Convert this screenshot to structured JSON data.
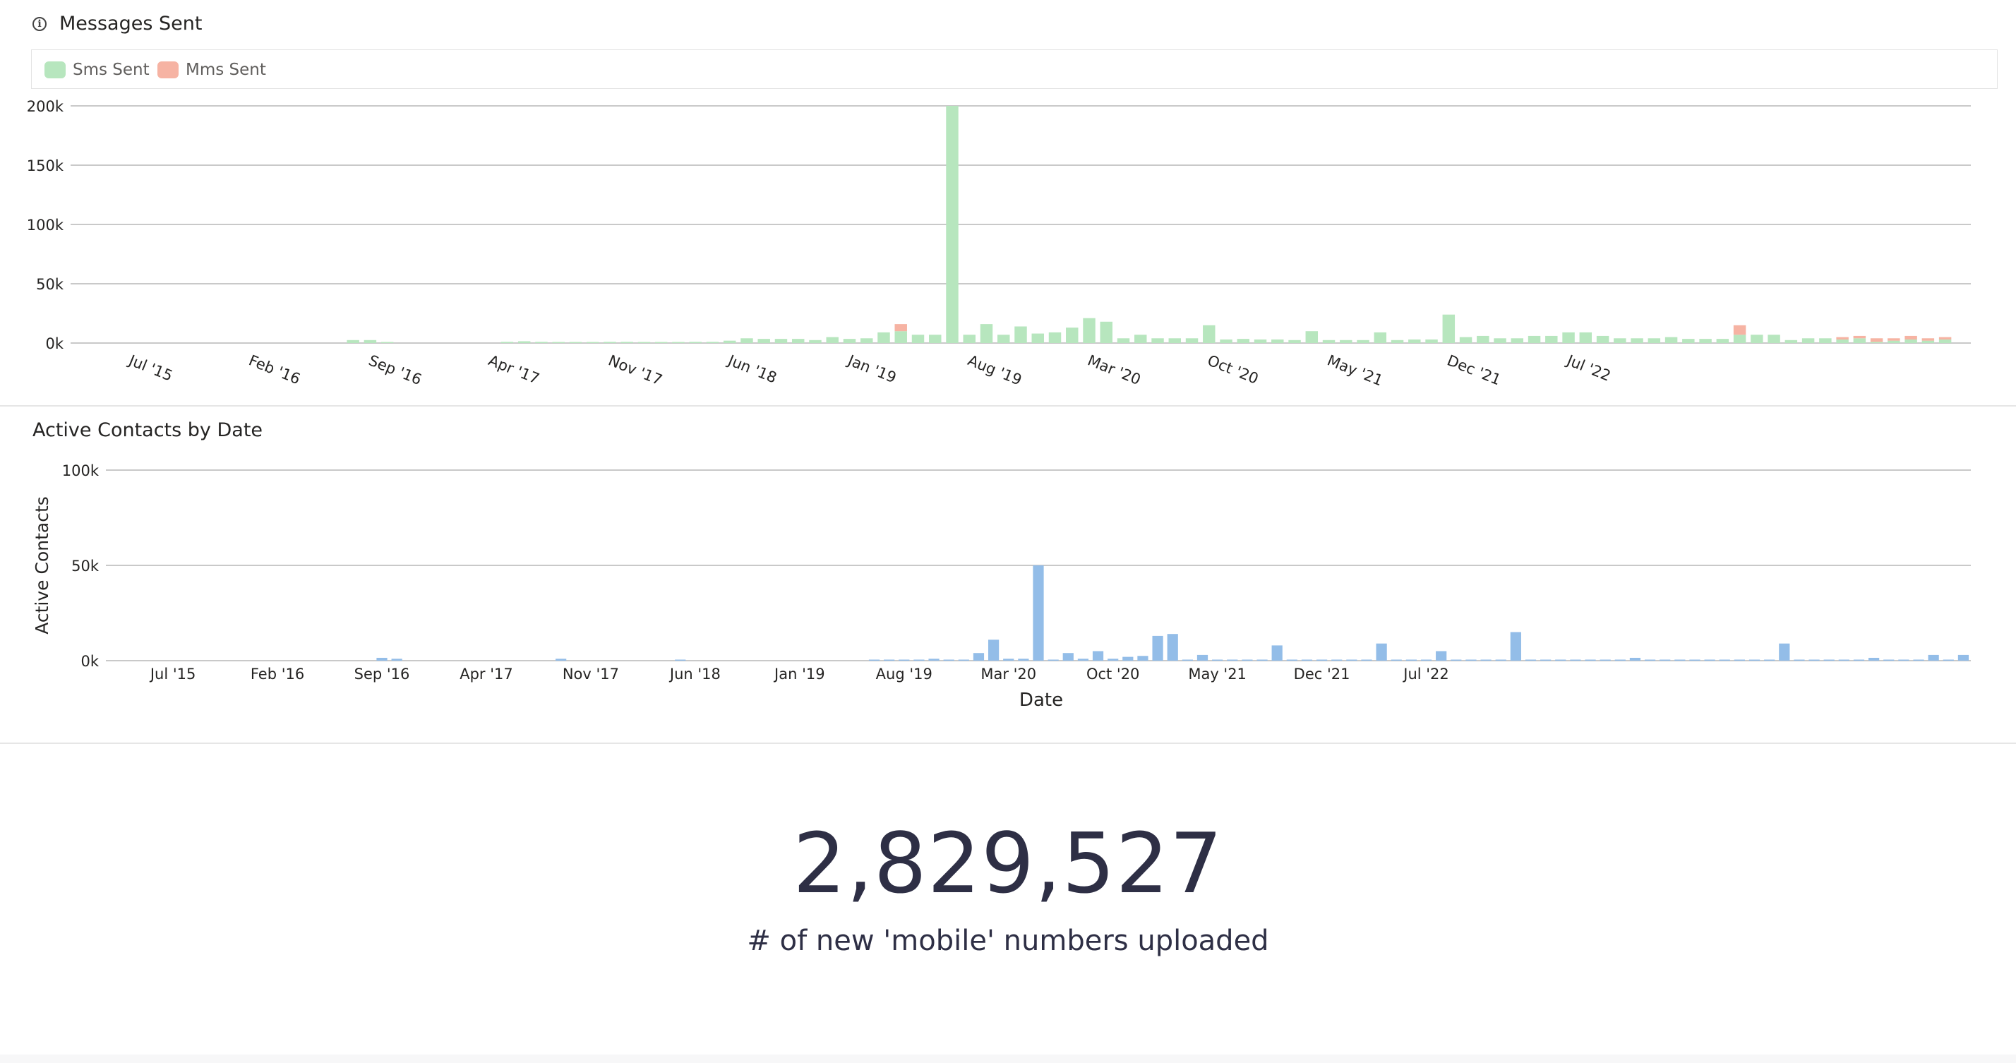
{
  "colors": {
    "sms": "#b7e6be",
    "mms": "#f6b3a3",
    "contacts": "#93bde8",
    "grid": "#b7b7b7",
    "axis_text": "#252423"
  },
  "messages_chart": {
    "title": "Messages Sent",
    "info_icon": "info-icon",
    "legend": [
      {
        "name": "Sms Sent",
        "color": "#b7e6be"
      },
      {
        "name": "Mms Sent",
        "color": "#f6b3a3"
      }
    ]
  },
  "contacts_chart": {
    "title": "Active Contacts by Date",
    "ylabel": "Active Contacts",
    "xlabel": "Date"
  },
  "kpi": {
    "value": "2,829,527",
    "label": "# of new 'mobile' numbers uploaded"
  },
  "chart_data": [
    {
      "type": "bar",
      "stacked": true,
      "title": "Messages Sent",
      "x_start": "2015-03",
      "x_ticks": [
        "Jul '15",
        "Feb '16",
        "Sep '16",
        "Apr '17",
        "Nov '17",
        "Jun '18",
        "Jan '19",
        "Aug '19",
        "Mar '20",
        "Oct '20",
        "May '21",
        "Dec '21",
        "Jul '22"
      ],
      "y_ticks": [
        "0k",
        "50k",
        "100k",
        "150k",
        "200k"
      ],
      "ylim": [
        0,
        200000
      ],
      "legend_position": "top-left",
      "grid": true,
      "series": [
        {
          "name": "Sms Sent",
          "values": [
            0,
            0,
            0,
            0,
            0,
            0,
            0,
            0,
            0,
            0,
            0,
            0,
            0,
            0,
            0,
            0,
            2500,
            2500,
            500,
            0,
            0,
            0,
            0,
            0,
            0,
            1000,
            1500,
            1000,
            500,
            500,
            500,
            1000,
            1000,
            500,
            500,
            500,
            1000,
            1000,
            2000,
            4000,
            3500,
            3500,
            3500,
            2500,
            5000,
            3500,
            4000,
            9000,
            10000,
            7000,
            7000,
            200000,
            7000,
            16000,
            7000,
            14000,
            8000,
            9000,
            13000,
            21000,
            18000,
            4000,
            7000,
            4000,
            4000,
            4000,
            15000,
            3000,
            3500,
            3000,
            3000,
            2500,
            10000,
            2500,
            2500,
            2500,
            9000,
            2500,
            3000,
            3000,
            24000,
            5000,
            6000,
            4000,
            4000,
            6000,
            6000,
            9000,
            9000,
            6000,
            4000,
            4000,
            4000,
            5000,
            3500,
            3500,
            3500,
            7000,
            7000,
            7000,
            2500,
            4000,
            4000,
            3000,
            4000,
            1000,
            2000,
            3000,
            2000,
            3000,
            0
          ]
        },
        {
          "name": "Mms Sent",
          "values": [
            0,
            0,
            0,
            0,
            0,
            0,
            0,
            0,
            0,
            0,
            0,
            0,
            0,
            0,
            0,
            0,
            0,
            0,
            0,
            0,
            0,
            0,
            0,
            0,
            0,
            0,
            0,
            0,
            0,
            0,
            0,
            0,
            0,
            0,
            0,
            0,
            0,
            0,
            0,
            0,
            0,
            0,
            0,
            0,
            0,
            0,
            0,
            0,
            6000,
            0,
            0,
            0,
            0,
            0,
            0,
            0,
            0,
            0,
            0,
            0,
            0,
            0,
            0,
            0,
            0,
            0,
            0,
            0,
            0,
            0,
            0,
            0,
            0,
            0,
            0,
            0,
            0,
            0,
            0,
            0,
            0,
            0,
            0,
            0,
            0,
            0,
            0,
            0,
            0,
            0,
            0,
            0,
            0,
            0,
            0,
            0,
            0,
            8000,
            0,
            0,
            0,
            0,
            0,
            2000,
            2000,
            3000,
            2000,
            3000,
            2000,
            2000,
            0
          ]
        }
      ]
    },
    {
      "type": "bar",
      "title": "Active Contacts by Date",
      "xlabel": "Date",
      "ylabel": "Active Contacts",
      "x_start": "2015-03",
      "x_ticks": [
        "Jul '15",
        "Feb '16",
        "Sep '16",
        "Apr '17",
        "Nov '17",
        "Jun '18",
        "Jan '19",
        "Aug '19",
        "Mar '20",
        "Oct '20",
        "May '21",
        "Dec '21",
        "Jul '22"
      ],
      "y_ticks": [
        "0k",
        "50k",
        "100k"
      ],
      "ylim": [
        0,
        100000
      ],
      "grid": true,
      "series": [
        {
          "name": "Active Contacts",
          "values": [
            0,
            0,
            0,
            0,
            0,
            0,
            0,
            0,
            0,
            0,
            0,
            0,
            0,
            0,
            0,
            0,
            0,
            0,
            1500,
            1000,
            0,
            0,
            0,
            0,
            0,
            0,
            0,
            0,
            0,
            0,
            1000,
            0,
            0,
            0,
            0,
            0,
            0,
            0,
            500,
            0,
            0,
            0,
            0,
            0,
            0,
            0,
            0,
            0,
            0,
            0,
            0,
            500,
            500,
            500,
            500,
            1000,
            500,
            500,
            4000,
            11000,
            1000,
            1000,
            50000,
            500,
            4000,
            1000,
            5000,
            1000,
            2000,
            2500,
            13000,
            14000,
            500,
            3000,
            500,
            500,
            500,
            500,
            8000,
            500,
            500,
            500,
            500,
            500,
            500,
            9000,
            500,
            500,
            500,
            5000,
            500,
            500,
            500,
            500,
            15000,
            500,
            500,
            500,
            500,
            500,
            500,
            500,
            1500,
            500,
            500,
            500,
            500,
            500,
            500,
            500,
            500,
            500,
            9000,
            500,
            500,
            500,
            500,
            500,
            1500,
            500,
            500,
            500,
            3000,
            500,
            3000
          ]
        }
      ]
    }
  ]
}
